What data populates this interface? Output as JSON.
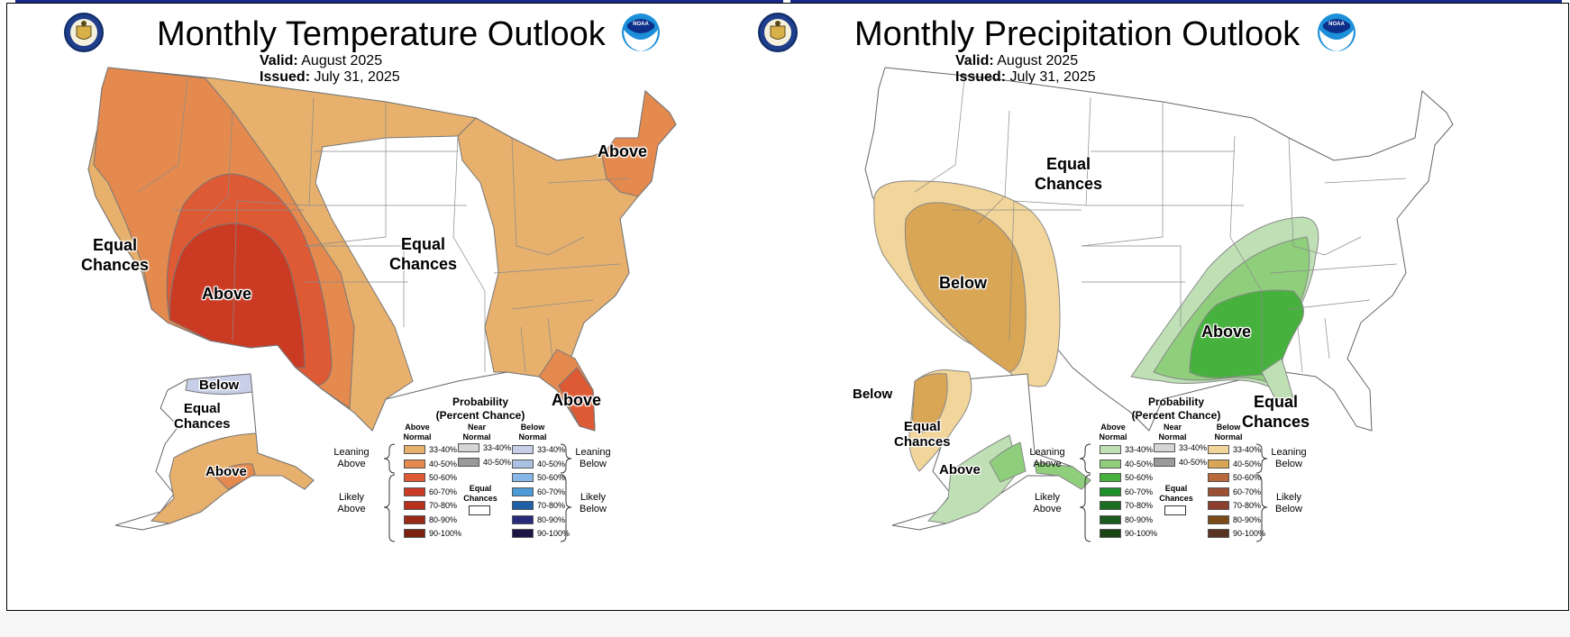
{
  "colors": {
    "temp_above_33": "#e7b06d",
    "temp_above_40": "#e58a4f",
    "temp_above_50": "#de5a35",
    "temp_above_60": "#cb3b24",
    "temp_below_33": "#c7cfe8",
    "precip_above_33": "#bfe0b4",
    "precip_above_40": "#8fcf7c",
    "precip_above_50": "#46b23d",
    "precip_below_33": "#f2d59a",
    "precip_below_40": "#d9a656",
    "frame": "#1a2a8c"
  },
  "temperature": {
    "title": "Monthly Temperature Outlook",
    "valid_label": "Valid:",
    "valid_value": "August 2025",
    "issued_label": "Issued:",
    "issued_value": "July 31, 2025",
    "logos": [
      "commerce-seal-icon",
      "noaa-logo-icon"
    ],
    "map_labels": {
      "west_equal": "Equal\nChances",
      "southwest_above": "Above",
      "central_equal": "Equal\nChances",
      "northeast_above": "Above",
      "florida_above": "Above",
      "alaska_below": "Below",
      "alaska_equal": "Equal\nChances",
      "alaska_above": "Above"
    }
  },
  "precipitation": {
    "title": "Monthly Precipitation Outlook",
    "valid_label": "Valid:",
    "valid_value": "August 2025",
    "issued_label": "Issued:",
    "issued_value": "July 31, 2025",
    "logos": [
      "commerce-seal-icon",
      "noaa-logo-icon"
    ],
    "map_labels": {
      "north_equal": "Equal\nChances",
      "rockies_below": "Below",
      "southeast_above": "Above",
      "florida_equal": "Equal\nChances",
      "alaska_below": "Below",
      "alaska_equal": "Equal\nChances",
      "alaska_above": "Above"
    }
  },
  "legend": {
    "title": "Probability\n(Percent Chance)",
    "col_above": "Above\nNormal",
    "col_near": "Near\nNormal",
    "col_below": "Below\nNormal",
    "leaning_above": "Leaning\nAbove",
    "likely_above": "Likely\nAbove",
    "leaning_below": "Leaning\nBelow",
    "likely_below": "Likely\nBelow",
    "equal_chances": "Equal\nChances",
    "above_ranges": [
      "33-40%",
      "40-50%",
      "50-60%",
      "60-70%",
      "70-80%",
      "80-90%",
      "90-100%"
    ],
    "near_ranges": [
      "33-40%",
      "40-50%"
    ],
    "below_ranges": [
      "33-40%",
      "40-50%",
      "50-60%",
      "60-70%",
      "70-80%",
      "80-90%",
      "90-100%"
    ],
    "temp_above_colors": [
      "#e7b06d",
      "#e58a4f",
      "#de5a35",
      "#cb3b24",
      "#b5311c",
      "#9a2a16",
      "#7a210f"
    ],
    "temp_below_colors": [
      "#c7cfe8",
      "#a9c2e3",
      "#86b7e6",
      "#4a9bd8",
      "#1f5fa8",
      "#2a2a7a",
      "#1c1646"
    ],
    "precip_above_colors": [
      "#bfe0b4",
      "#8fcf7c",
      "#46b23d",
      "#1e8f2a",
      "#1c6e23",
      "#1b5a1f",
      "#1b4415"
    ],
    "precip_below_colors": [
      "#f2d59a",
      "#d9a656",
      "#b8683a",
      "#9c4f33",
      "#8b3f2c",
      "#7a4a18",
      "#5a3222"
    ],
    "near_colors": [
      "#d6d6d6",
      "#9a9a9a"
    ]
  }
}
